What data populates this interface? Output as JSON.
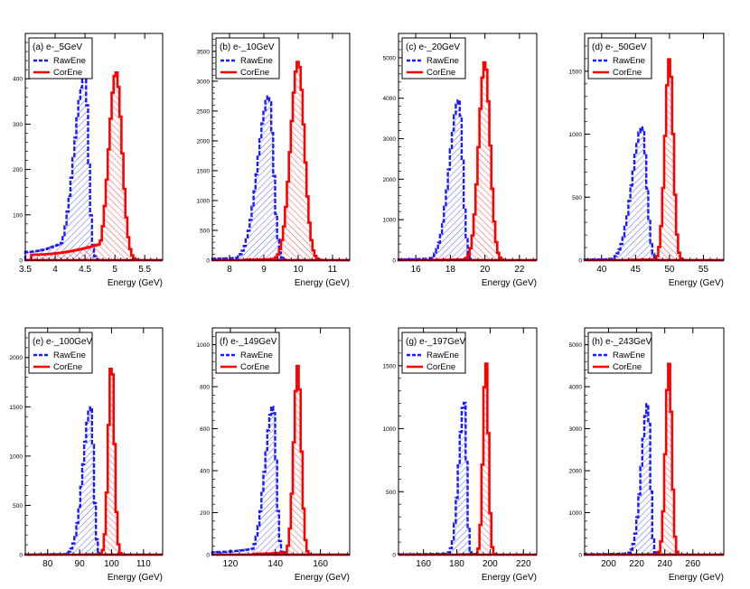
{
  "colors": {
    "raw": "#1a1aff",
    "cor": "#ff0000",
    "axis": "#000000"
  },
  "xlabel": "Energy (GeV)",
  "legend": {
    "raw_label": "RawEne",
    "cor_label": "CorEne"
  },
  "chart_data": [
    {
      "type": "histogram",
      "title": "(a) e-_5GeV",
      "xlabel": "Energy (GeV)",
      "xlim": [
        3.5,
        5.8
      ],
      "ylim": [
        0,
        500
      ],
      "xticks": [
        3.5,
        4,
        4.5,
        5,
        5.5
      ],
      "xtick_labels": [
        "3.5",
        "4",
        "4.5",
        "5",
        "5.5"
      ],
      "yticks": [
        0,
        100,
        200,
        300,
        400
      ],
      "ytick_labels": [
        "0",
        "100",
        "200",
        "300",
        "400"
      ],
      "series": [
        {
          "name": "RawEne",
          "peak_x": 4.5,
          "peak_y": 405,
          "sigma_left": 0.18,
          "sigma_right": 0.06,
          "tail_y": 18,
          "tail_from": 3.5
        },
        {
          "name": "CorEne",
          "peak_x": 5.02,
          "peak_y": 415,
          "sigma_left": 0.12,
          "sigma_right": 0.1,
          "tail_y": 12,
          "tail_from": 3.6
        }
      ]
    },
    {
      "type": "histogram",
      "title": "(b) e-_10GeV",
      "xlabel": "Energy (GeV)",
      "xlim": [
        7.5,
        11.5
      ],
      "ylim": [
        0,
        3800
      ],
      "xticks": [
        8,
        9,
        10,
        11
      ],
      "xtick_labels": [
        "8",
        "9",
        "10",
        "11"
      ],
      "yticks": [
        0,
        500,
        1000,
        1500,
        2000,
        2500,
        3000,
        3500
      ],
      "ytick_labels": [
        "0",
        "500",
        "1000",
        "1500",
        "2000",
        "2500",
        "3000",
        "3500"
      ],
      "series": [
        {
          "name": "RawEne",
          "peak_x": 9.15,
          "peak_y": 2750,
          "sigma_left": 0.32,
          "sigma_right": 0.13,
          "tail_y": 25,
          "tail_from": 7.5
        },
        {
          "name": "CorEne",
          "peak_x": 10.0,
          "peak_y": 3330,
          "sigma_left": 0.22,
          "sigma_right": 0.18,
          "tail_y": 10,
          "tail_from": 8.5
        }
      ]
    },
    {
      "type": "histogram",
      "title": "(c) e-_20GeV",
      "xlabel": "Energy (GeV)",
      "xlim": [
        15,
        23
      ],
      "ylim": [
        0,
        5600
      ],
      "xticks": [
        16,
        18,
        20,
        22
      ],
      "xtick_labels": [
        "16",
        "18",
        "20",
        "22"
      ],
      "yticks": [
        0,
        1000,
        2000,
        3000,
        4000,
        5000
      ],
      "ytick_labels": [
        "0",
        "1000",
        "2000",
        "3000",
        "4000",
        "5000"
      ],
      "series": [
        {
          "name": "RawEne",
          "peak_x": 18.5,
          "peak_y": 3950,
          "sigma_left": 0.55,
          "sigma_right": 0.22,
          "tail_y": 20,
          "tail_from": 15
        },
        {
          "name": "CorEne",
          "peak_x": 20.0,
          "peak_y": 4900,
          "sigma_left": 0.35,
          "sigma_right": 0.3,
          "tail_y": 8,
          "tail_from": 17
        }
      ]
    },
    {
      "type": "histogram",
      "title": "(d) e-_50GeV",
      "xlabel": "Energy (GeV)",
      "xlim": [
        37.5,
        58
      ],
      "ylim": [
        0,
        1800
      ],
      "xticks": [
        40,
        45,
        50,
        55
      ],
      "xtick_labels": [
        "40",
        "45",
        "50",
        "55"
      ],
      "yticks": [
        0,
        500,
        1000,
        1500
      ],
      "ytick_labels": [
        "0",
        "500",
        "1000",
        "1500"
      ],
      "series": [
        {
          "name": "RawEne",
          "peak_x": 46.0,
          "peak_y": 1060,
          "sigma_left": 1.5,
          "sigma_right": 0.65,
          "tail_y": 5,
          "tail_from": 37.5
        },
        {
          "name": "CorEne",
          "peak_x": 50.0,
          "peak_y": 1600,
          "sigma_left": 0.65,
          "sigma_right": 0.55,
          "tail_y": 3,
          "tail_from": 44
        }
      ]
    },
    {
      "type": "histogram",
      "title": "(e) e-_100GeV",
      "xlabel": "Energy (GeV)",
      "xlim": [
        73,
        116
      ],
      "ylim": [
        0,
        2300
      ],
      "xticks": [
        80,
        90,
        100,
        110
      ],
      "xtick_labels": [
        "80",
        "90",
        "100",
        "110"
      ],
      "yticks": [
        0,
        500,
        1000,
        1500,
        2000
      ],
      "ytick_labels": [
        "0",
        "500",
        "1000",
        "1500",
        "2000"
      ],
      "series": [
        {
          "name": "RawEne",
          "peak_x": 93.5,
          "peak_y": 1500,
          "sigma_left": 2.4,
          "sigma_right": 0.9,
          "tail_y": 3,
          "tail_from": 73
        },
        {
          "name": "CorEne",
          "peak_x": 100.0,
          "peak_y": 1960,
          "sigma_left": 1.0,
          "sigma_right": 0.9,
          "tail_y": 2,
          "tail_from": 90
        }
      ]
    },
    {
      "type": "histogram",
      "title": "(f) e-_149GeV",
      "xlabel": "Energy (GeV)",
      "xlim": [
        112,
        173
      ],
      "ylim": [
        0,
        1080
      ],
      "xticks": [
        120,
        140,
        160
      ],
      "xtick_labels": [
        "120",
        "140",
        "160"
      ],
      "yticks": [
        0,
        200,
        400,
        600,
        800,
        1000
      ],
      "ytick_labels": [
        "0",
        "200",
        "400",
        "600",
        "800",
        "1000"
      ],
      "series": [
        {
          "name": "RawEne",
          "peak_x": 139.0,
          "peak_y": 710,
          "sigma_left": 3.6,
          "sigma_right": 1.4,
          "tail_y": 12,
          "tail_from": 112
        },
        {
          "name": "CorEne",
          "peak_x": 150.0,
          "peak_y": 900,
          "sigma_left": 1.8,
          "sigma_right": 1.5,
          "tail_y": 4,
          "tail_from": 130
        }
      ]
    },
    {
      "type": "histogram",
      "title": "(g) e-_197GeV",
      "xlabel": "Energy (GeV)",
      "xlim": [
        145,
        228
      ],
      "ylim": [
        0,
        1800
      ],
      "xticks": [
        160,
        180,
        200,
        220
      ],
      "xtick_labels": [
        "160",
        "180",
        "200",
        "220"
      ],
      "yticks": [
        0,
        500,
        1000,
        1500
      ],
      "ytick_labels": [
        "0",
        "500",
        "1000",
        "1500"
      ],
      "series": [
        {
          "name": "RawEne",
          "peak_x": 184.5,
          "peak_y": 1220,
          "sigma_left": 3.2,
          "sigma_right": 1.4,
          "tail_y": 3,
          "tail_from": 145
        },
        {
          "name": "CorEne",
          "peak_x": 197.5,
          "peak_y": 1540,
          "sigma_left": 1.7,
          "sigma_right": 1.5,
          "tail_y": 2,
          "tail_from": 180
        }
      ]
    },
    {
      "type": "histogram",
      "title": "(h) e-_243GeV",
      "xlabel": "Energy (GeV)",
      "xlim": [
        183,
        282
      ],
      "ylim": [
        0,
        5400
      ],
      "xticks": [
        200,
        220,
        240,
        260
      ],
      "xtick_labels": [
        "200",
        "220",
        "240",
        "260"
      ],
      "yticks": [
        0,
        1000,
        2000,
        3000,
        4000,
        5000
      ],
      "ytick_labels": [
        "0",
        "1000",
        "2000",
        "3000",
        "4000",
        "5000"
      ],
      "series": [
        {
          "name": "RawEne",
          "peak_x": 228.0,
          "peak_y": 3600,
          "sigma_left": 4.5,
          "sigma_right": 1.8,
          "tail_y": 10,
          "tail_from": 183
        },
        {
          "name": "CorEne",
          "peak_x": 243.0,
          "peak_y": 4550,
          "sigma_left": 2.4,
          "sigma_right": 2.0,
          "tail_y": 5,
          "tail_from": 220
        }
      ]
    }
  ]
}
